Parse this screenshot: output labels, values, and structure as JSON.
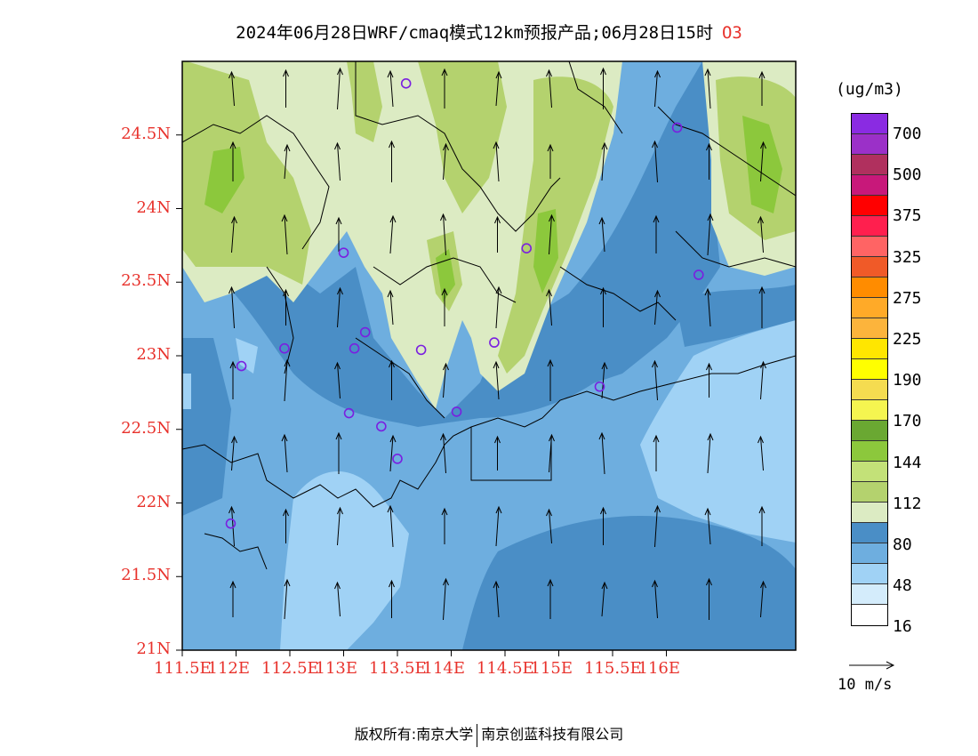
{
  "title": {
    "text": "2024年06月28日WRF/cmaq模式12km预报产品;06月28日15时",
    "species": "O3"
  },
  "axes": {
    "lat_labels": [
      "24.5N",
      "24N",
      "23.5N",
      "23N",
      "22.5N",
      "22N",
      "21.5N",
      "21N"
    ],
    "lat_values": [
      24.5,
      24.0,
      23.5,
      23.0,
      22.5,
      22.0,
      21.5,
      21.0
    ],
    "lon_labels": [
      "111.5E",
      "112E",
      "112.5E",
      "113E",
      "113.5E",
      "114E",
      "114.5E",
      "115E",
      "115.5E",
      "116E"
    ],
    "lon_values": [
      111.5,
      112.0,
      112.5,
      113.0,
      113.5,
      114.0,
      114.5,
      115.0,
      115.5,
      116.0
    ]
  },
  "colorbar": {
    "unit": "(ug/m3)",
    "labels": [
      "700",
      "500",
      "375",
      "325",
      "275",
      "225",
      "190",
      "170",
      "144",
      "112",
      "80",
      "48",
      "16"
    ],
    "colors": [
      "#8a2be2",
      "#9b30c8",
      "#b0305e",
      "#c8187a",
      "#ff0000",
      "#ff1f4e",
      "#ff6464",
      "#f05a28",
      "#ff8c00",
      "#ffaa28",
      "#fcb43c",
      "#ffe600",
      "#ffff00",
      "#f5dc50",
      "#f5f550",
      "#6aa832",
      "#8cc83c",
      "#c3e178",
      "#b4d26e",
      "#dcebc3",
      "#4a8ec6",
      "#6eaedf",
      "#a0d2f5",
      "#d4ecfb",
      "#ffffff"
    ]
  },
  "wind_reference": {
    "label": "10 m/s"
  },
  "stations": [
    {
      "lon": 113.58,
      "lat": 24.85
    },
    {
      "lon": 116.1,
      "lat": 24.55
    },
    {
      "lon": 113.0,
      "lat": 23.7
    },
    {
      "lon": 114.7,
      "lat": 23.73
    },
    {
      "lon": 116.3,
      "lat": 23.55
    },
    {
      "lon": 112.45,
      "lat": 23.05
    },
    {
      "lon": 113.2,
      "lat": 23.16
    },
    {
      "lon": 113.1,
      "lat": 23.05
    },
    {
      "lon": 113.72,
      "lat": 23.04
    },
    {
      "lon": 114.4,
      "lat": 23.09
    },
    {
      "lon": 112.05,
      "lat": 22.93
    },
    {
      "lon": 115.38,
      "lat": 22.79
    },
    {
      "lon": 113.05,
      "lat": 22.61
    },
    {
      "lon": 114.05,
      "lat": 22.62
    },
    {
      "lon": 113.35,
      "lat": 22.52
    },
    {
      "lon": 113.5,
      "lat": 22.3
    },
    {
      "lon": 111.95,
      "lat": 21.86
    }
  ],
  "copyright": {
    "prefix": "版权所有:",
    "org1": "南京大学",
    "org2": "南京创蓝科技有限公司"
  },
  "palette": {
    "accent": "#e8322c"
  }
}
